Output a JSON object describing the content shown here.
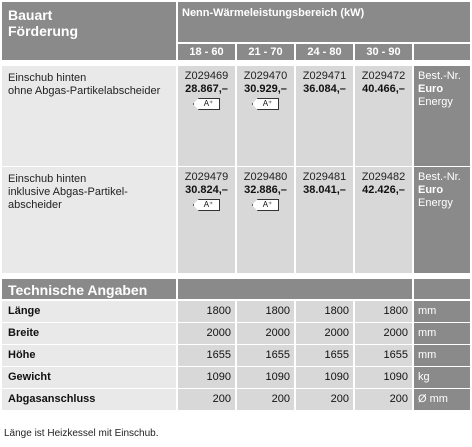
{
  "header": {
    "title_line1": "Bauart",
    "title_line2": "Förderung",
    "kw_title": "Nenn-Wärmeleistungsbereich (kW)",
    "ranges": [
      "18 - 60",
      "21 - 70",
      "24 - 80",
      "30 - 90"
    ]
  },
  "rows": [
    {
      "desc_line1": "Einschub hinten",
      "desc_line2": "ohne Abgas-Partikelabscheider",
      "desc_line3": "",
      "cells": [
        {
          "code": "Z029469",
          "price": "28.867,–",
          "badge": "A⁺"
        },
        {
          "code": "Z029470",
          "price": "30.929,–",
          "badge": "A⁺"
        },
        {
          "code": "Z029471",
          "price": "36.084,–",
          "badge": ""
        },
        {
          "code": "Z029472",
          "price": "40.466,–",
          "badge": ""
        }
      ],
      "side_line1": "Best.-Nr.",
      "side_line2": "Euro",
      "side_line3": "Energy"
    },
    {
      "desc_line1": "Einschub hinten",
      "desc_line2": "inklusive Abgas-Partikel-",
      "desc_line3": "abscheider",
      "cells": [
        {
          "code": "Z029479",
          "price": "30.824,–",
          "badge": "A⁺"
        },
        {
          "code": "Z029480",
          "price": "32.886,–",
          "badge": "A⁺"
        },
        {
          "code": "Z029481",
          "price": "38.041,–",
          "badge": ""
        },
        {
          "code": "Z029482",
          "price": "42.426,–",
          "badge": ""
        }
      ],
      "side_line1": "Best.-Nr.",
      "side_line2": "Euro",
      "side_line3": "Energy"
    }
  ],
  "tech": {
    "title": "Technische Angaben",
    "rows": [
      {
        "label": "Länge",
        "values": [
          "1800",
          "1800",
          "1800",
          "1800"
        ],
        "unit": "mm"
      },
      {
        "label": "Breite",
        "values": [
          "2000",
          "2000",
          "2000",
          "2000"
        ],
        "unit": "mm"
      },
      {
        "label": "Höhe",
        "values": [
          "1655",
          "1655",
          "1655",
          "1655"
        ],
        "unit": "mm"
      },
      {
        "label": "Gewicht",
        "values": [
          "1090",
          "1090",
          "1090",
          "1090"
        ],
        "unit": "kg"
      },
      {
        "label": "Abgasanschluss",
        "values": [
          "200",
          "200",
          "200",
          "200"
        ],
        "unit": "Ø mm"
      }
    ]
  },
  "footnote": "Länge ist Heizkessel mit Einschub.",
  "colors": {
    "header_gray": "#8a8a8a",
    "cell_gray": "#d8d8d8",
    "light_gray": "#e9e9e9"
  }
}
